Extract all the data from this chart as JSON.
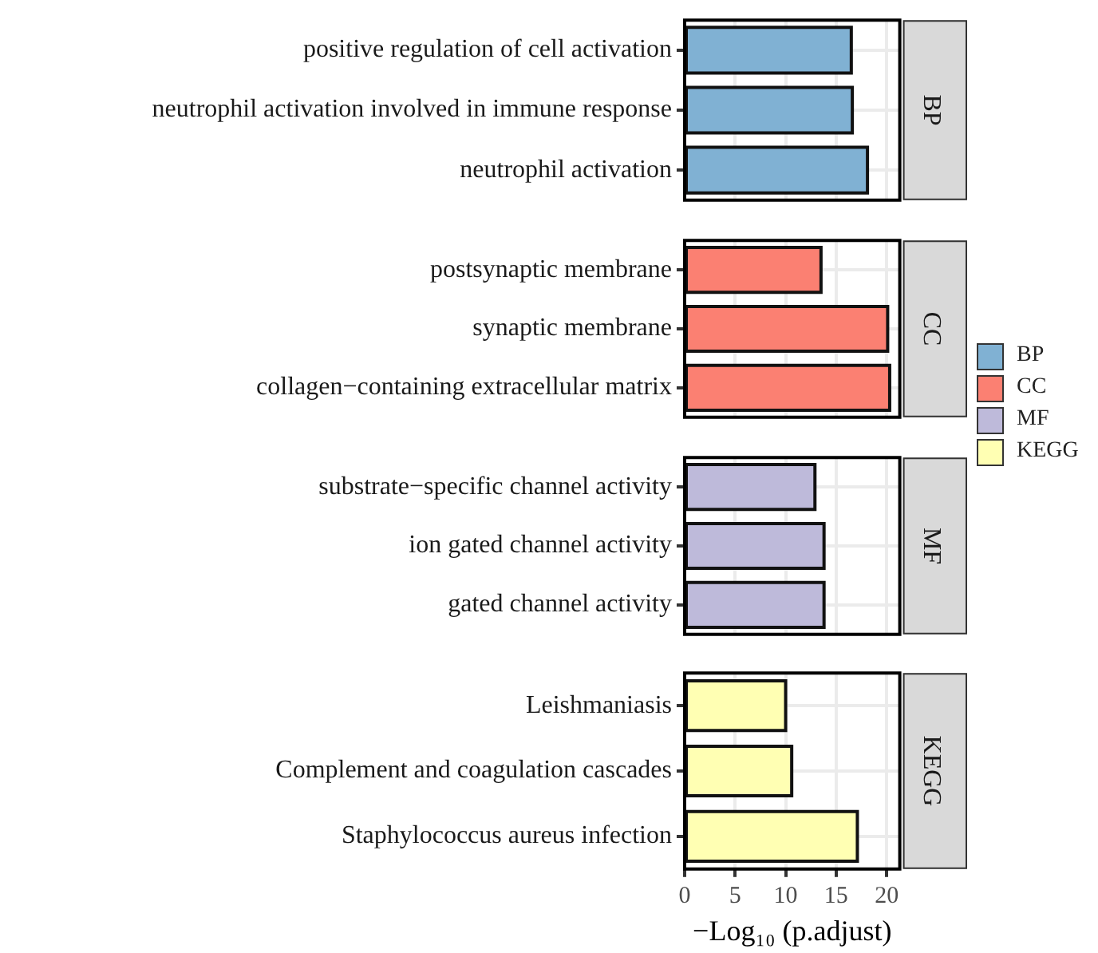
{
  "chart_data": [
    {
      "type": "bar",
      "orientation": "horizontal",
      "categories": [
        "positive regulation of cell activation",
        "neutrophil activation involved in immune response",
        "neutrophil activation"
      ],
      "series": [
        {
          "name": "BP",
          "color": "#80b1d3",
          "values": [
            16.5,
            16.6,
            18.1
          ]
        }
      ],
      "xlim": [
        0,
        21.3
      ],
      "xticks": [
        0,
        5,
        10,
        15,
        20
      ],
      "grid": true,
      "legend": "right",
      "tick_labels": "y"
    },
    {
      "type": "bar",
      "orientation": "horizontal",
      "categories": [
        "postsynaptic membrane",
        "synaptic membrane",
        "collagen−containing extracellular matrix"
      ],
      "series": [
        {
          "name": "CC",
          "color": "#fb8072",
          "values": [
            13.5,
            20.1,
            20.3
          ]
        }
      ],
      "xlim": [
        0,
        21.3
      ],
      "xticks": [
        0,
        5,
        10,
        15,
        20
      ],
      "grid": true,
      "legend": "right",
      "tick_labels": "y"
    },
    {
      "type": "bar",
      "orientation": "horizontal",
      "categories": [
        "substrate−specific channel activity",
        "ion gated channel activity",
        "gated channel activity"
      ],
      "series": [
        {
          "name": "MF",
          "color": "#bebada",
          "values": [
            12.9,
            13.8,
            13.8
          ]
        }
      ],
      "xlim": [
        0,
        21.3
      ],
      "xticks": [
        0,
        5,
        10,
        15,
        20
      ],
      "grid": true,
      "legend": "right",
      "tick_labels": "y"
    },
    {
      "type": "bar",
      "orientation": "horizontal",
      "categories": [
        "Leishmaniasis",
        "Complement and coagulation cascades",
        "Staphylococcus aureus infection"
      ],
      "series": [
        {
          "name": "KEGG",
          "color": "#ffffb3",
          "values": [
            10.0,
            10.6,
            17.1
          ]
        }
      ],
      "xlim": [
        0,
        21.3
      ],
      "xticks": [
        0,
        5,
        10,
        15,
        20
      ],
      "grid": true,
      "legend": "right",
      "xlabel": "−Log₁₀ (p.adjust)"
    }
  ]
}
